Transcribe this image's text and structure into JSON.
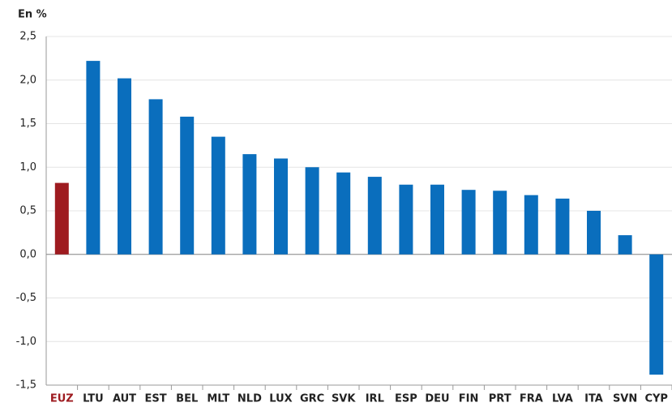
{
  "chart_data": {
    "type": "bar",
    "y_label": "En %",
    "categories": [
      "EUZ",
      "LTU",
      "AUT",
      "EST",
      "BEL",
      "MLT",
      "NLD",
      "LUX",
      "GRC",
      "SVK",
      "IRL",
      "ESP",
      "DEU",
      "FIN",
      "PRT",
      "FRA",
      "LVA",
      "ITA",
      "SVN",
      "CYP"
    ],
    "values": [
      0.82,
      2.22,
      2.02,
      1.78,
      1.58,
      1.35,
      1.15,
      1.1,
      1.0,
      0.94,
      0.89,
      0.8,
      0.8,
      0.74,
      0.73,
      0.68,
      0.64,
      0.5,
      0.22,
      -1.38
    ],
    "color": "#0a6ebd",
    "colors": [
      "#9e1b20",
      "#0a6ebd",
      "#0a6ebd",
      "#0a6ebd",
      "#0a6ebd",
      "#0a6ebd",
      "#0a6ebd",
      "#0a6ebd",
      "#0a6ebd",
      "#0a6ebd",
      "#0a6ebd",
      "#0a6ebd",
      "#0a6ebd",
      "#0a6ebd",
      "#0a6ebd",
      "#0a6ebd",
      "#0a6ebd",
      "#0a6ebd",
      "#0a6ebd",
      "#0a6ebd"
    ],
    "ylim": [
      -1.5,
      2.5
    ],
    "yticks": [
      {
        "value": -1.5,
        "label": "-1,5"
      },
      {
        "value": -1.0,
        "label": "-1,0"
      },
      {
        "value": -0.5,
        "label": "-0,5"
      },
      {
        "value": 0,
        "label": "0,0"
      },
      {
        "value": 0.5,
        "label": "0,5"
      },
      {
        "value": 1.0,
        "label": "1,0"
      },
      {
        "value": 1.5,
        "label": "1,5"
      },
      {
        "value": 2.0,
        "label": "2,0"
      },
      {
        "value": 2.5,
        "label": "2,5"
      }
    ],
    "grid": true
  }
}
